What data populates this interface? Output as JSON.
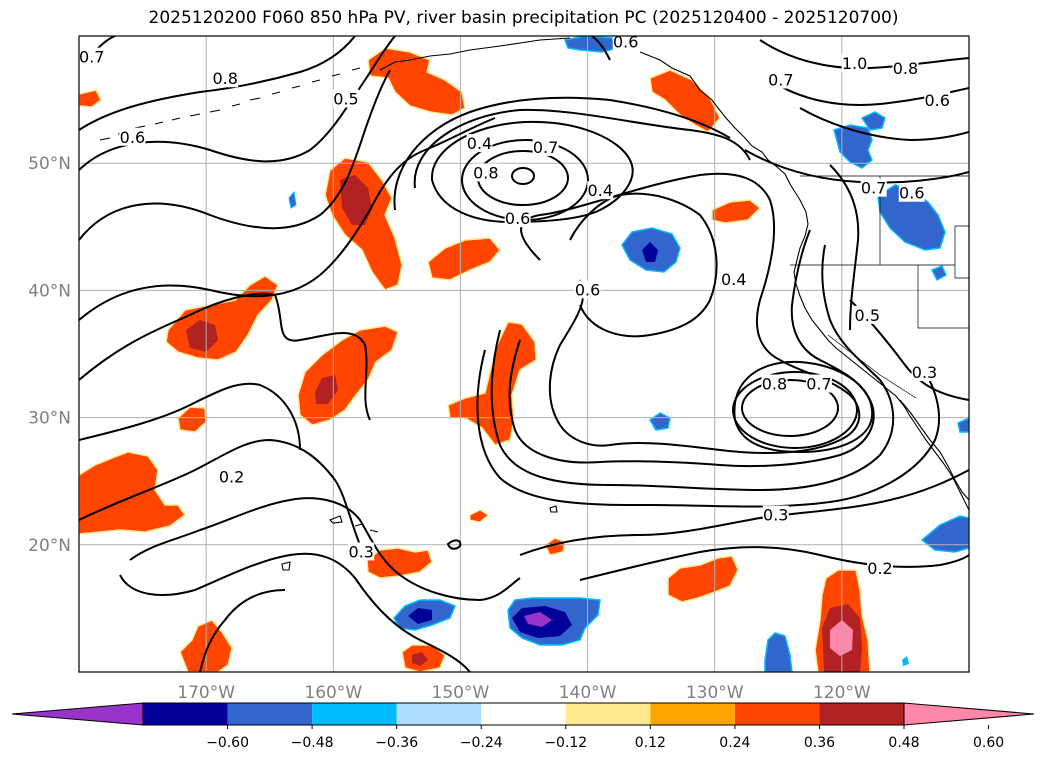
{
  "title": "2025120200 F060 850 hPa PV, river basin precipitation PC (2025120400 - 2025120700)",
  "lat_labels": [
    "50°N",
    "40°N",
    "30°N",
    "20°N"
  ],
  "lat_values": [
    50,
    40,
    30,
    20
  ],
  "lon_labels": [
    "170°W",
    "160°W",
    "150°W",
    "140°W",
    "130°W",
    "120°W"
  ],
  "lon_values": [
    -170,
    -160,
    -150,
    -140,
    -130,
    -120
  ],
  "map_extent": {
    "lon_min": -180,
    "lon_max": -110,
    "lat_min": 10,
    "lat_max": 60
  },
  "contour_labels": [
    {
      "text": "0.7",
      "lon": -179,
      "lat": 58.3
    },
    {
      "text": "0.8",
      "lon": -168.5,
      "lat": 56.6
    },
    {
      "text": "0.6",
      "lon": -175.8,
      "lat": 52.0
    },
    {
      "text": "0.5",
      "lon": -159.0,
      "lat": 55.0
    },
    {
      "text": "0.4",
      "lon": -148.5,
      "lat": 51.5
    },
    {
      "text": "0.7",
      "lon": -143.3,
      "lat": 51.2
    },
    {
      "text": "0.8",
      "lon": -148.0,
      "lat": 49.2
    },
    {
      "text": "0.6",
      "lon": -145.5,
      "lat": 45.6
    },
    {
      "text": "0.4",
      "lon": -139.0,
      "lat": 47.8
    },
    {
      "text": "0.6",
      "lon": -140.0,
      "lat": 40.0
    },
    {
      "text": "0.4",
      "lon": -128.5,
      "lat": 40.8
    },
    {
      "text": "0.8",
      "lon": -125.3,
      "lat": 32.6
    },
    {
      "text": "0.7",
      "lon": -121.8,
      "lat": 32.6
    },
    {
      "text": "0.3",
      "lon": -125.2,
      "lat": 22.3
    },
    {
      "text": "0.2",
      "lon": -117.0,
      "lat": 18.1
    },
    {
      "text": "0.2",
      "lon": -168.0,
      "lat": 25.3
    },
    {
      "text": "0.3",
      "lon": -157.8,
      "lat": 19.4
    },
    {
      "text": "1.0",
      "lon": -119.0,
      "lat": 57.8
    },
    {
      "text": "0.8",
      "lon": -115.0,
      "lat": 57.4
    },
    {
      "text": "0.6",
      "lon": -112.5,
      "lat": 54.9
    },
    {
      "text": "0.7",
      "lon": -117.5,
      "lat": 48.0
    },
    {
      "text": "0.6",
      "lon": -114.5,
      "lat": 47.6
    },
    {
      "text": "0.5",
      "lon": -118.0,
      "lat": 38.0
    },
    {
      "text": "0.3",
      "lon": -113.5,
      "lat": 33.5
    },
    {
      "text": "0.6",
      "lon": -137.0,
      "lat": 59.5
    },
    {
      "text": "0.7",
      "lon": -124.8,
      "lat": 56.5
    }
  ],
  "colorbar": {
    "ticks": [
      "−0.60",
      "−0.48",
      "−0.36",
      "−0.24",
      "−0.12",
      "0.12",
      "0.24",
      "0.36",
      "0.48",
      "0.60"
    ],
    "colors": [
      "#9933cc",
      "#000099",
      "#3366cc",
      "#00bbff",
      "#aaddff",
      "#ffffff",
      "#ffe98f",
      "#ffa500",
      "#ff4500",
      "#b22222",
      "#ff88aa"
    ]
  },
  "colors": {
    "orange": "#ff4500",
    "dark_red": "#b22222",
    "pink": "#ff88aa",
    "yellow": "#ffe98f",
    "amber": "#ffa500",
    "light_blue": "#aaddff",
    "cyan": "#00bbff",
    "royal_blue": "#3366cc",
    "navy": "#000099",
    "purple": "#9933cc",
    "grid": "#b0b0b0"
  }
}
